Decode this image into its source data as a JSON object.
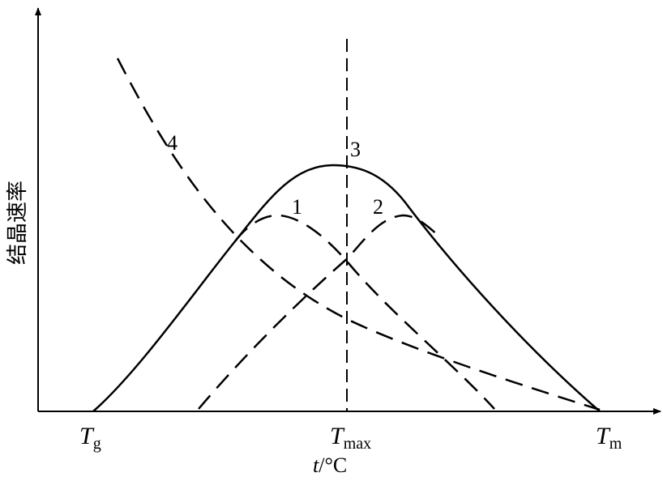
{
  "chart_data": {
    "type": "line",
    "title": "",
    "ylabel": "结晶速率",
    "xlabel": {
      "italic": "t",
      "rest": "/°C"
    },
    "x_ticks": [
      {
        "main": "T",
        "sub": "g"
      },
      {
        "main": "T",
        "sub": "max"
      },
      {
        "main": "T",
        "sub": "m"
      }
    ],
    "curve_labels": [
      "1",
      "2",
      "3",
      "4"
    ],
    "grid": false
  }
}
